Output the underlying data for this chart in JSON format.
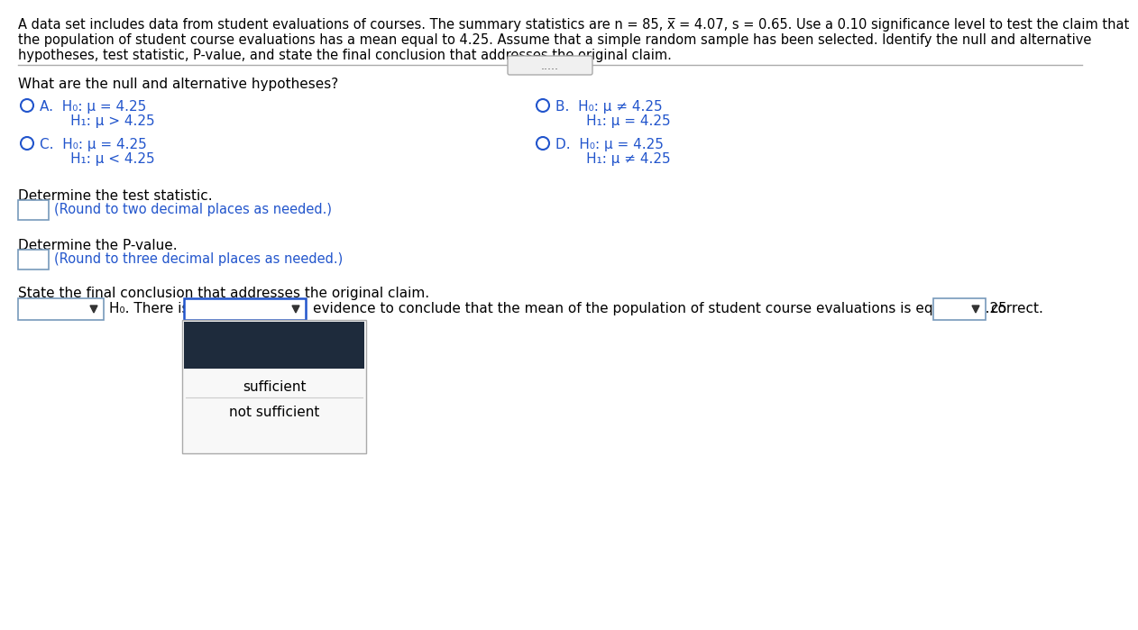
{
  "title_lines": [
    "A data set includes data from student evaluations of courses. The summary statistics are n = 85, x̅ = 4.07, s = 0.65. Use a 0.10 significance level to test the claim that",
    "the population of student course evaluations has a mean equal to 4.25. Assume that a simple random sample has been selected. Identify the null and alternative",
    "hypotheses, test statistic, P-value, and state the final conclusion that addresses the original claim."
  ],
  "section1": "What are the null and alternative hypotheses?",
  "optA_line1": "A.  H₀: μ = 4.25",
  "optA_line2": "       H₁: μ > 4.25",
  "optB_line1": "B.  H₀: μ ≠ 4.25",
  "optB_line2": "       H₁: μ = 4.25",
  "optC_line1": "C.  H₀: μ = 4.25",
  "optC_line2": "       H₁: μ < 4.25",
  "optD_line1": "D.  H₀: μ = 4.25",
  "optD_line2": "       H₁: μ ≠ 4.25",
  "section2": "Determine the test statistic.",
  "hint1": "(Round to two decimal places as needed.)",
  "section3": "Determine the P-value.",
  "hint2": "(Round to three decimal places as needed.)",
  "section4": "State the final conclusion that addresses the original claim.",
  "conclusion_text": "evidence to conclude that the mean of the population of student course evaluations is equal to 4.25",
  "conclusion_end": "correct.",
  "h0_label": "H₀. There is",
  "dropdown_items": [
    "sufficient",
    "not sufficient"
  ],
  "bg_color": "#ffffff",
  "text_color": "#000000",
  "blue_color": "#2255cc",
  "hint_color": "#2255cc",
  "option_color": "#2255cc",
  "box_border_color": "#7799bb",
  "dark_box_color": "#1e2b3c",
  "separator_color": "#aaaaaa",
  "dots_color": "#555555",
  "popup_bg": "#f8f8f8",
  "popup_border": "#aaaaaa"
}
